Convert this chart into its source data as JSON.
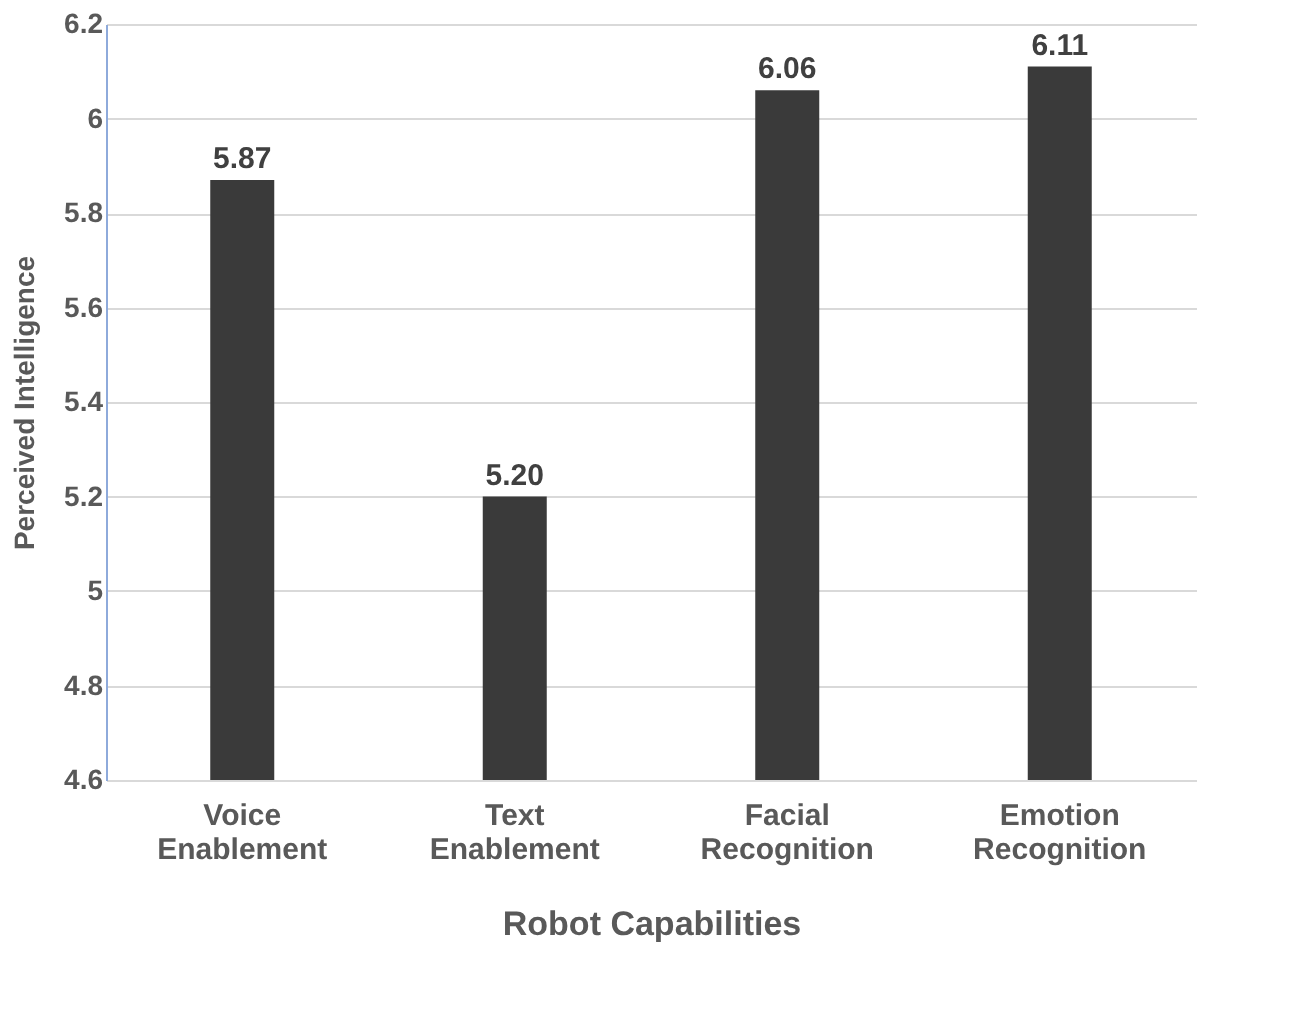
{
  "chart_data": {
    "type": "bar",
    "xlabel": "Robot Capabilities",
    "ylabel": "Perceived Intelligence",
    "categories": [
      "Voice Enablement",
      "Text Enablement",
      "Facial Recognition",
      "Emotion Recognition"
    ],
    "values": [
      5.87,
      5.2,
      6.06,
      6.11
    ],
    "value_labels": [
      "5.87",
      "5.20",
      "6.06",
      "6.11"
    ],
    "color": "#3a3a3a",
    "ylim": [
      4.6,
      6.2
    ],
    "yticks": [
      4.6,
      4.8,
      5,
      5.2,
      5.4,
      5.6,
      5.8,
      6,
      6.2
    ],
    "grid": "y"
  }
}
